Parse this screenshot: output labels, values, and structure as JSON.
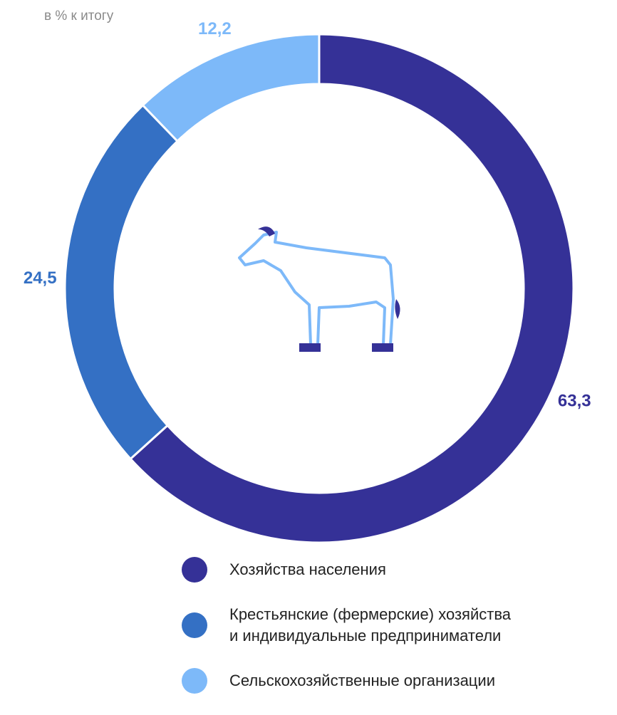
{
  "chart_data": {
    "type": "pie",
    "subtitle": "в % к итогу",
    "categories": [
      "Хозяйства населения",
      "Крестьянские (фермерские) хозяйства\nи индивидуальные предприниматели",
      "Сельскохозяйственные организации"
    ],
    "values": [
      63.3,
      24.5,
      12.2
    ],
    "value_labels": [
      "63,3",
      "24,5",
      "12,2"
    ],
    "colors": [
      "#353197",
      "#3470c4",
      "#7db9f9"
    ]
  }
}
